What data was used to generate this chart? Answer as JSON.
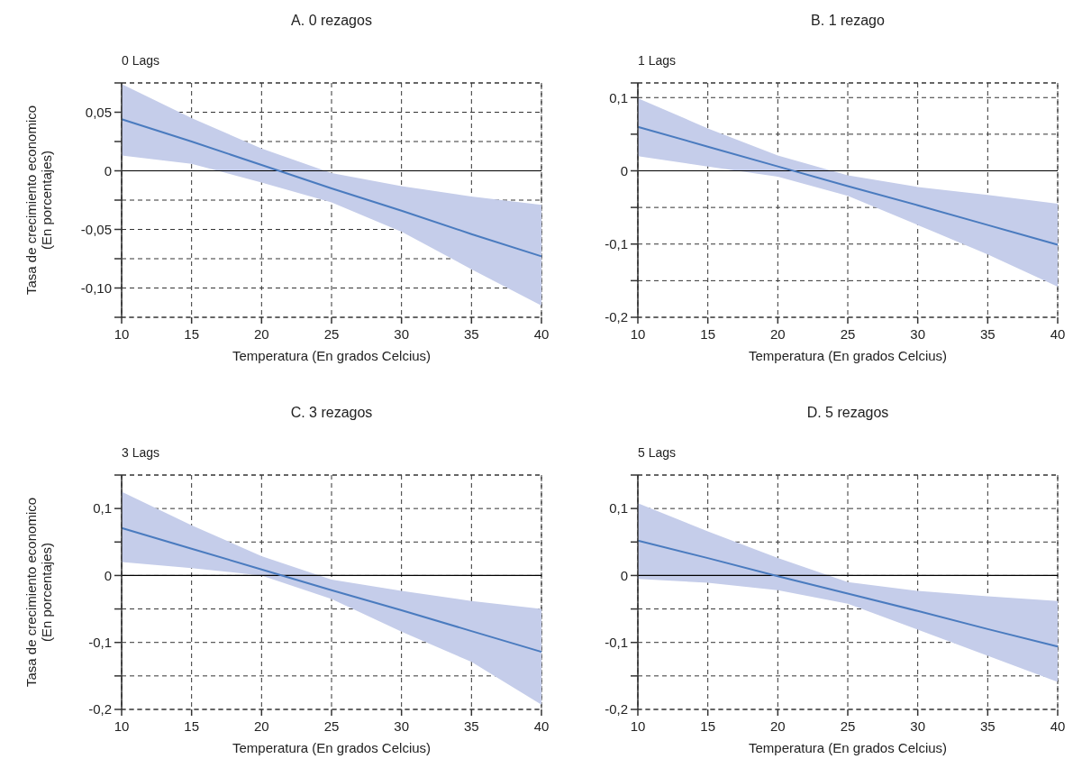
{
  "chart_data": [
    {
      "type": "line",
      "title": "A. 0 rezagos",
      "subtitle": "0 Lags",
      "xlabel": "Temperatura (En grados Celcius)",
      "ylabel": "Tasa de crecimiento economico\n(En porcentajes)",
      "xlim": [
        10,
        40
      ],
      "xticks": [
        10,
        15,
        20,
        25,
        30,
        35,
        40
      ],
      "ylim": [
        -0.125,
        0.075
      ],
      "yticks": [
        {
          "value": 0.075,
          "label": null
        },
        {
          "value": 0.05,
          "label": "0,05"
        },
        {
          "value": 0.025,
          "label": null
        },
        {
          "value": 0,
          "label": "0"
        },
        {
          "value": -0.025,
          "label": null
        },
        {
          "value": -0.05,
          "label": "-0,05"
        },
        {
          "value": -0.075,
          "label": null
        },
        {
          "value": -0.1,
          "label": "-0,10"
        },
        {
          "value": -0.125,
          "label": null
        }
      ],
      "grid": true,
      "line_style": "solid",
      "ref_lines": [
        {
          "axis": "y",
          "value": 0,
          "color": "#000000",
          "line_style": "solid"
        }
      ],
      "series": [
        {
          "x": [
            10,
            15,
            20,
            25,
            30,
            35,
            40
          ],
          "color": "#4a7bbf",
          "values": [
            0.044,
            0.025,
            0.005,
            -0.015,
            -0.034,
            -0.054,
            -0.073
          ],
          "upper": [
            0.074,
            0.045,
            0.019,
            -0.002,
            -0.013,
            -0.022,
            -0.029
          ],
          "lower": [
            0.013,
            0.006,
            -0.01,
            -0.027,
            -0.052,
            -0.084,
            -0.115
          ]
        }
      ]
    },
    {
      "type": "line",
      "title": "B. 1 rezago",
      "subtitle": "1 Lags",
      "xlabel": "Temperatura (En grados Celcius)",
      "xlim": [
        10,
        40
      ],
      "xticks": [
        10,
        15,
        20,
        25,
        30,
        35,
        40
      ],
      "ylim": [
        -0.2,
        0.12
      ],
      "yticks": [
        {
          "value": 0.12,
          "label": null
        },
        {
          "value": 0.1,
          "label": "0,1"
        },
        {
          "value": 0.05,
          "label": null
        },
        {
          "value": 0,
          "label": "0"
        },
        {
          "value": -0.05,
          "label": null
        },
        {
          "value": -0.1,
          "label": "-0,1"
        },
        {
          "value": -0.15,
          "label": null
        },
        {
          "value": -0.2,
          "label": "-0,2"
        }
      ],
      "grid": true,
      "line_style": "solid",
      "ref_lines": [
        {
          "axis": "y",
          "value": 0,
          "color": "#000000",
          "line_style": "solid"
        }
      ],
      "series": [
        {
          "x": [
            10,
            15,
            20,
            25,
            30,
            35,
            40
          ],
          "color": "#4a7bbf",
          "values": [
            0.06,
            0.033,
            0.006,
            -0.021,
            -0.047,
            -0.074,
            -0.101
          ],
          "upper": [
            0.099,
            0.058,
            0.021,
            -0.006,
            -0.022,
            -0.033,
            -0.045
          ],
          "lower": [
            0.02,
            0.006,
            -0.008,
            -0.034,
            -0.074,
            -0.114,
            -0.158
          ]
        }
      ]
    },
    {
      "type": "line",
      "title": "C. 3 rezagos",
      "subtitle": "3 Lags",
      "xlabel": "Temperatura (En grados Celcius)",
      "ylabel": "Tasa de crecimiento economico\n(En porcentajes)",
      "xlim": [
        10,
        40
      ],
      "xticks": [
        10,
        15,
        20,
        25,
        30,
        35,
        40
      ],
      "ylim": [
        -0.2,
        0.15
      ],
      "yticks": [
        {
          "value": 0.15,
          "label": null
        },
        {
          "value": 0.1,
          "label": "0,1"
        },
        {
          "value": 0.05,
          "label": null
        },
        {
          "value": 0,
          "label": "0"
        },
        {
          "value": -0.05,
          "label": null
        },
        {
          "value": -0.1,
          "label": "-0,1"
        },
        {
          "value": -0.15,
          "label": null
        },
        {
          "value": -0.2,
          "label": "-0,2"
        }
      ],
      "grid": true,
      "line_style": "solid",
      "ref_lines": [
        {
          "axis": "y",
          "value": 0,
          "color": "#000000",
          "line_style": "solid"
        }
      ],
      "series": [
        {
          "x": [
            10,
            15,
            20,
            25,
            30,
            35,
            40
          ],
          "color": "#4a7bbf",
          "values": [
            0.071,
            0.04,
            0.009,
            -0.022,
            -0.052,
            -0.083,
            -0.114
          ],
          "upper": [
            0.125,
            0.075,
            0.029,
            -0.006,
            -0.023,
            -0.038,
            -0.05
          ],
          "lower": [
            0.02,
            0.011,
            0,
            -0.035,
            -0.084,
            -0.129,
            -0.193
          ]
        }
      ]
    },
    {
      "type": "line",
      "title": "D. 5 rezagos",
      "subtitle": "5 Lags",
      "xlabel": "Temperatura (En grados Celcius)",
      "xlim": [
        10,
        40
      ],
      "xticks": [
        10,
        15,
        20,
        25,
        30,
        35,
        40
      ],
      "ylim": [
        -0.2,
        0.15
      ],
      "yticks": [
        {
          "value": 0.15,
          "label": null
        },
        {
          "value": 0.1,
          "label": "0,1"
        },
        {
          "value": 0.05,
          "label": null
        },
        {
          "value": 0,
          "label": "0"
        },
        {
          "value": -0.05,
          "label": null
        },
        {
          "value": -0.1,
          "label": "-0,1"
        },
        {
          "value": -0.15,
          "label": null
        },
        {
          "value": -0.2,
          "label": "-0,2"
        }
      ],
      "grid": true,
      "line_style": "solid",
      "ref_lines": [
        {
          "axis": "y",
          "value": 0,
          "color": "#000000",
          "line_style": "solid"
        }
      ],
      "series": [
        {
          "x": [
            10,
            15,
            20,
            25,
            30,
            35,
            40
          ],
          "color": "#4a7bbf",
          "values": [
            0.052,
            0.026,
            -0.001,
            -0.027,
            -0.053,
            -0.08,
            -0.106
          ],
          "upper": [
            0.108,
            0.066,
            0.026,
            -0.01,
            -0.023,
            -0.031,
            -0.038
          ],
          "lower": [
            -0.005,
            -0.011,
            -0.022,
            -0.042,
            -0.081,
            -0.12,
            -0.159
          ]
        }
      ]
    }
  ]
}
